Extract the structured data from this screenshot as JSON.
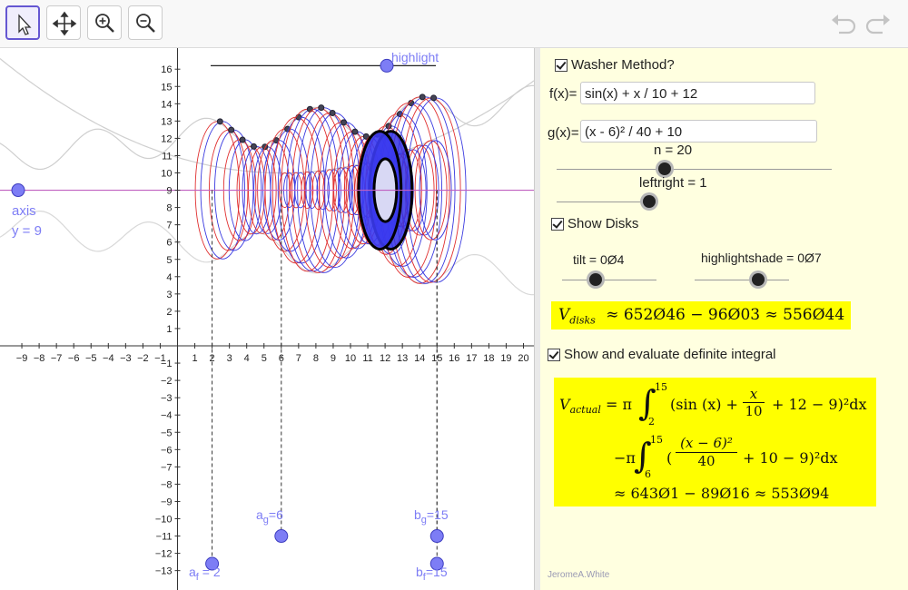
{
  "toolbar": {
    "tools": [
      "move-tool",
      "move-graphics-view-tool",
      "zoom-in-tool",
      "zoom-out-tool"
    ],
    "undo_icon": "undo-icon",
    "redo_icon": "redo-icon"
  },
  "graphics": {
    "x_ticks": [
      "−9",
      "−8",
      "−7",
      "−6",
      "−5",
      "−4",
      "−3",
      "−2",
      "−1",
      "1",
      "2",
      "3",
      "4",
      "5",
      "6",
      "7",
      "8",
      "9",
      "10",
      "11",
      "12",
      "13",
      "14",
      "15",
      "16",
      "17",
      "18",
      "19",
      "20"
    ],
    "y_ticks": [
      "16",
      "15",
      "14",
      "13",
      "12",
      "11",
      "10",
      "9",
      "8",
      "7",
      "6",
      "5",
      "4",
      "3",
      "2",
      "1",
      "−1",
      "−2",
      "−3",
      "−4",
      "−5",
      "−6",
      "−7",
      "−8",
      "−9",
      "−10",
      "−11",
      "−12",
      "−13"
    ],
    "highlight_label": "highlight",
    "axis_label": "axis",
    "axis_eq": "y = 9",
    "ag_label": "a",
    "ag_sub": "g",
    "ag_value": "=6",
    "bg_label": "b",
    "bg_sub": "g",
    "bg_value": "=15",
    "af_label": "a",
    "af_sub": "f",
    "af_value": " = 2",
    "bf_label": "b",
    "bf_sub": "f",
    "bf_value": "=15",
    "colors": {
      "red": "#e03030",
      "blue": "#3a3ae0",
      "axis_line": "#c060c0",
      "point": "#7d7df5"
    }
  },
  "panel": {
    "washer_label": "Washer Method?",
    "f_label": "f(x)=",
    "f_value": "sin(x) + x / 10 + 12",
    "g_label": "g(x)=",
    "g_value": "(x - 6)² / 40 + 10",
    "n_label": "n = 20",
    "leftright_label": "leftright = 1",
    "show_disks_label": "Show Disks",
    "tilt_label": "tilt = 0Ø4",
    "highlightshade_label": "highlightshade = 0Ø7",
    "vdisks_v": "V",
    "vdisks_sub": "disks",
    "vdisks_expr": "≈  652Ø46 − 96Ø03  ≈  556Ø44",
    "integral_label": "Show and evaluate definite integral",
    "vactual_v": "V",
    "vactual_sub": "actual",
    "eq_pi": "= π",
    "int1_upper": "15",
    "int1_lower": "2",
    "int1_body_a": "(sin (x) +",
    "int1_frac_num": "x",
    "int1_frac_den": "10",
    "int1_body_b": "+ 12 − 9)²dx",
    "minus_pi": "−π",
    "int2_upper": "15",
    "int2_lower": "6",
    "int2_open": "(",
    "int2_frac_num": "(x − 6)²",
    "int2_frac_den": "40",
    "int2_body_b": "+ 10 − 9)²dx",
    "result": "≈ 643Ø1 − 89Ø16 ≈ 553Ø94",
    "author": "JeromeA.White"
  }
}
